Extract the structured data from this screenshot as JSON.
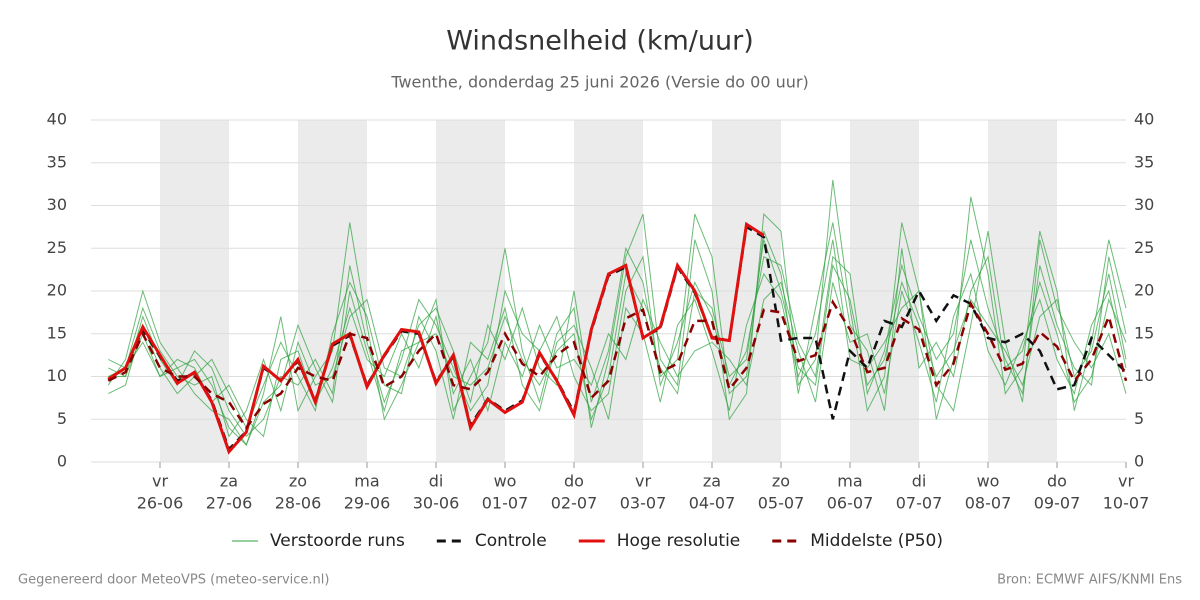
{
  "chart_data": {
    "type": "line",
    "title": "Windsnelheid (km/uur)",
    "subtitle": "Twenthe, donderdag 25 juni 2026 (Versie do 00 uur)",
    "x": [
      0.25,
      0.5,
      0.75,
      1,
      1.25,
      1.5,
      1.75,
      2,
      2.25,
      2.5,
      2.75,
      3,
      3.25,
      3.5,
      3.75,
      4,
      4.25,
      4.5,
      4.75,
      5,
      5.25,
      5.5,
      5.75,
      6,
      6.25,
      6.5,
      6.75,
      7,
      7.25,
      7.5,
      7.75,
      8,
      8.25,
      8.5,
      8.75,
      9,
      9.25,
      9.5,
      9.75,
      10,
      10.25,
      10.5,
      10.75,
      11,
      11.25,
      11.5,
      11.75,
      12,
      12.25,
      12.5,
      12.75,
      13,
      13.25,
      13.5,
      13.75,
      14,
      14.25,
      14.5,
      14.75,
      15
    ],
    "xlim": [
      0,
      15
    ],
    "xticks": [
      {
        "value": 1,
        "label": "vr",
        "date": "26-06"
      },
      {
        "value": 2,
        "label": "za",
        "date": "27-06"
      },
      {
        "value": 3,
        "label": "zo",
        "date": "28-06"
      },
      {
        "value": 4,
        "label": "ma",
        "date": "29-06"
      },
      {
        "value": 5,
        "label": "di",
        "date": "30-06"
      },
      {
        "value": 6,
        "label": "wo",
        "date": "01-07"
      },
      {
        "value": 7,
        "label": "do",
        "date": "02-07"
      },
      {
        "value": 8,
        "label": "vr",
        "date": "03-07"
      },
      {
        "value": 9,
        "label": "za",
        "date": "04-07"
      },
      {
        "value": 10,
        "label": "zo",
        "date": "05-07"
      },
      {
        "value": 11,
        "label": "ma",
        "date": "06-07"
      },
      {
        "value": 12,
        "label": "di",
        "date": "07-07"
      },
      {
        "value": 13,
        "label": "wo",
        "date": "08-07"
      },
      {
        "value": 14,
        "label": "do",
        "date": "09-07"
      },
      {
        "value": 15,
        "label": "vr",
        "date": "10-07"
      }
    ],
    "ylim": [
      0,
      40
    ],
    "yticks": [
      0,
      5,
      10,
      15,
      20,
      25,
      30,
      35,
      40
    ],
    "grid": true,
    "ensemble": {
      "name": "Verstoorde runs",
      "color": "#2ca03c",
      "values": [
        [
          9,
          12,
          20,
          14,
          11,
          12,
          9,
          4,
          2,
          8,
          17,
          6,
          10,
          13,
          28,
          16,
          5,
          9,
          14,
          19,
          6,
          10,
          14,
          25,
          13,
          7,
          15,
          18,
          4,
          12,
          24,
          29,
          12,
          9,
          26,
          20,
          5,
          8,
          29,
          27,
          9,
          12,
          33,
          18,
          6,
          10,
          28,
          20,
          5,
          12,
          31,
          22,
          8,
          11,
          27,
          20,
          6,
          14,
          26,
          18
        ],
        [
          11,
          10,
          17,
          12,
          9,
          13,
          11,
          6,
          3,
          5,
          10,
          9,
          12,
          8,
          23,
          14,
          7,
          12,
          19,
          16,
          11,
          6,
          9,
          20,
          15,
          13,
          17,
          10,
          6,
          8,
          20,
          24,
          9,
          14,
          21,
          17,
          9,
          13,
          24,
          23,
          14,
          10,
          24,
          22,
          8,
          13,
          23,
          17,
          12,
          15,
          26,
          18,
          12,
          8,
          23,
          16,
          11,
          9,
          24,
          15
        ],
        [
          10,
          11,
          14,
          10,
          12,
          11,
          7,
          9,
          5,
          3,
          12,
          13,
          7,
          11,
          18,
          12,
          10,
          15,
          11,
          17,
          8,
          12,
          6,
          14,
          10,
          16,
          11,
          12,
          9,
          15,
          12,
          19,
          14,
          10,
          13,
          14,
          12,
          9,
          19,
          21,
          13,
          7,
          21,
          14,
          15,
          8,
          20,
          14,
          7,
          17,
          22,
          13,
          9,
          14,
          19,
          12,
          8,
          16,
          20,
          11
        ],
        [
          8,
          9,
          16,
          11,
          8,
          10,
          12,
          8,
          4,
          9,
          14,
          10,
          6,
          15,
          21,
          17,
          9,
          8,
          17,
          13,
          5,
          14,
          12,
          18,
          9,
          6,
          14,
          16,
          11,
          5,
          18,
          15,
          7,
          16,
          19,
          13,
          6,
          16,
          22,
          19,
          10,
          15,
          26,
          12,
          11,
          14,
          18,
          20,
          9,
          6,
          16,
          27,
          14,
          7,
          26,
          18,
          14,
          11,
          15,
          8
        ],
        [
          12,
          11,
          18,
          13,
          10,
          9,
          10,
          3,
          6,
          12,
          6,
          14,
          9,
          10,
          17,
          19,
          11,
          10,
          16,
          18,
          13,
          7,
          16,
          12,
          18,
          11,
          9,
          20,
          7,
          13,
          25,
          21,
          10,
          12,
          29,
          24,
          8,
          10,
          27,
          22,
          8,
          18,
          28,
          16,
          13,
          6,
          25,
          11,
          14,
          10,
          20,
          24,
          11,
          13,
          21,
          15,
          7,
          10,
          19,
          14
        ],
        [
          10,
          10,
          15,
          10,
          11,
          8,
          6,
          5,
          2,
          7,
          9,
          16,
          11,
          7,
          20,
          13,
          6,
          13,
          14,
          15,
          10,
          9,
          11,
          17,
          12,
          9,
          13,
          15,
          5,
          10,
          22,
          18,
          11,
          8,
          20,
          18,
          10,
          12,
          26,
          20,
          11,
          9,
          23,
          19,
          9,
          12,
          21,
          16,
          10,
          13,
          19,
          16,
          13,
          9,
          17,
          19,
          10,
          13,
          22,
          12
        ]
      ]
    },
    "series": [
      {
        "name": "Controle",
        "color": "#111111",
        "dash": true,
        "values": [
          9.6,
          11,
          15.5,
          12.3,
          9.5,
          10.4,
          7.2,
          1.5,
          3.6,
          11,
          9.6,
          11.8,
          7.2,
          13.6,
          14.8,
          9,
          12.4,
          15.3,
          15,
          9.4,
          12.3,
          4.3,
          7.4,
          6,
          7.2,
          12.6,
          9.6,
          5.8,
          15.3,
          21.8,
          22.8,
          14.6,
          15.6,
          22.8,
          19.8,
          14.6,
          14.2,
          27.5,
          26.3,
          14.2,
          14.5,
          14.5,
          5,
          13,
          11,
          16.5,
          15.8,
          20,
          16.5,
          19.5,
          18.5,
          14.5,
          14,
          15,
          13,
          8.5,
          9,
          14.5,
          12.5,
          10.5
        ]
      },
      {
        "name": "Hoge resolutie",
        "color": "#e01010",
        "dash": false,
        "values": [
          9.7,
          11,
          15.8,
          12.5,
          9.2,
          10.5,
          7,
          1.2,
          3.5,
          11.2,
          9.5,
          12,
          7,
          13.8,
          15,
          8.8,
          12.5,
          15.5,
          15.2,
          9.2,
          12.5,
          4,
          7.3,
          5.8,
          7,
          12.8,
          9.5,
          5.5,
          15.5,
          22,
          23,
          14.5,
          15.8,
          23,
          20,
          14.5,
          14.2,
          27.8,
          26.5,
          null,
          null,
          null,
          null,
          null,
          null,
          null,
          null,
          null,
          null,
          null,
          null,
          null,
          null,
          null,
          null,
          null,
          null,
          null,
          null,
          null
        ]
      },
      {
        "name": "Middelste (P50)",
        "color": "#8b0000",
        "dash": true,
        "values": [
          9.5,
          10.5,
          15,
          11,
          10,
          10,
          8,
          7,
          4,
          6.8,
          8,
          11,
          10,
          9.5,
          15,
          14.5,
          8.8,
          10,
          13,
          15,
          9,
          8.5,
          10.5,
          15,
          11.5,
          10,
          12.5,
          14,
          7.5,
          9.5,
          16.8,
          17.8,
          10.5,
          11.5,
          16.5,
          16.5,
          8.5,
          11,
          17.8,
          17.5,
          11.8,
          12.5,
          18.7,
          15.5,
          10.5,
          11,
          16.8,
          15.5,
          9,
          11.5,
          18.5,
          15,
          10.8,
          11.5,
          15.2,
          13.5,
          9.5,
          12,
          17,
          9.5
        ]
      }
    ]
  },
  "footer": {
    "left": "Gegenereerd door MeteoVPS (meteo-service.nl)",
    "right": "Bron: ECMWF AIFS/KNMI Ens"
  }
}
